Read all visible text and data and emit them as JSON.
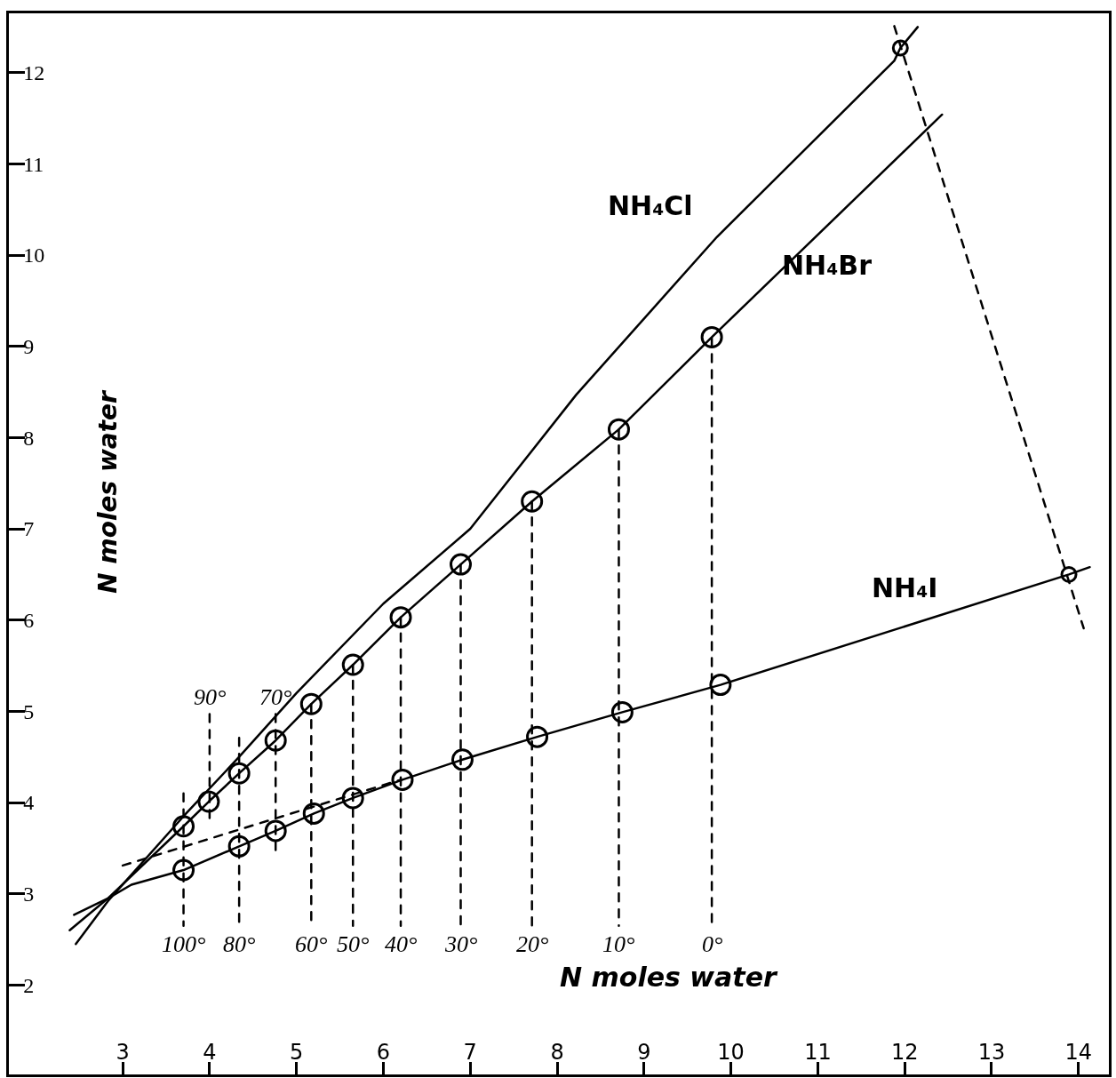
{
  "chart_data": {
    "type": "line",
    "xlabel": "N moles water",
    "ylabel": "N moles water",
    "xlim": [
      1.69,
      14.35
    ],
    "ylim": [
      1.02,
      12.65
    ],
    "xticks": [
      3,
      4,
      5,
      6,
      7,
      8,
      9,
      10,
      11,
      12,
      13,
      14
    ],
    "yticks": [
      2,
      3,
      4,
      5,
      6,
      7,
      8,
      9,
      10,
      11,
      12
    ],
    "series": [
      {
        "name": "NH₄Cl",
        "color": "#000000",
        "marker": "none",
        "line_style": "solid",
        "x": [
          2.46,
          2.83,
          3.7,
          4.34,
          5.0,
          6.0,
          7.0,
          8.22,
          9.84,
          11.88,
          11.95,
          12.15
        ],
        "values": [
          2.45,
          2.92,
          3.85,
          4.5,
          5.2,
          6.18,
          7.0,
          8.47,
          10.2,
          12.13,
          12.27,
          12.5
        ]
      },
      {
        "name": "NH₄Br",
        "color": "#000000",
        "marker": "none",
        "line_style": "solid",
        "x": [
          2.39,
          2.83,
          3.7,
          3.99,
          4.34,
          4.76,
          5.17,
          5.65,
          6.2,
          6.89,
          7.71,
          8.71,
          9.78,
          12.43
        ],
        "values": [
          2.6,
          2.95,
          3.74,
          4.01,
          4.32,
          4.68,
          5.08,
          5.51,
          6.03,
          6.61,
          7.3,
          8.09,
          9.1,
          11.54
        ]
      },
      {
        "name": "NH₄I",
        "color": "#000000",
        "marker": "none",
        "line_style": "solid",
        "x": [
          2.44,
          2.83,
          3.1,
          3.7,
          4.34,
          4.76,
          5.2,
          5.65,
          6.22,
          6.91,
          7.77,
          8.75,
          9.88,
          13.89,
          14.13
        ],
        "values": [
          2.77,
          2.95,
          3.1,
          3.26,
          3.52,
          3.69,
          3.88,
          4.05,
          4.25,
          4.47,
          4.72,
          4.99,
          5.29,
          6.5,
          6.58
        ]
      },
      {
        "type": "scatter",
        "color": "#000000",
        "marker": "circle",
        "x": [
          3.7,
          3.99,
          4.34,
          4.76,
          5.17,
          5.65,
          6.2,
          6.89,
          7.71,
          8.71,
          9.78
        ],
        "values": [
          3.74,
          4.01,
          4.32,
          4.68,
          5.08,
          5.51,
          6.03,
          6.61,
          7.3,
          8.09,
          9.1
        ]
      },
      {
        "type": "scatter",
        "color": "#000000",
        "marker": "circle",
        "x": [
          3.7,
          4.34,
          4.76,
          5.2,
          5.65,
          6.22,
          6.91,
          7.77,
          8.75,
          9.88
        ],
        "values": [
          3.26,
          3.52,
          3.69,
          3.88,
          4.05,
          4.25,
          4.47,
          4.72,
          4.99,
          5.29
        ]
      },
      {
        "type": "scatter",
        "color": "#000000",
        "marker": "circle",
        "x": [
          11.95,
          13.89
        ],
        "values": [
          12.27,
          6.5
        ]
      },
      {
        "color": "#000000",
        "marker": "none",
        "line_style": "dashed",
        "x": [
          3.0,
          6.2
        ],
        "values": [
          3.31,
          4.25
        ]
      },
      {
        "color": "#000000",
        "marker": "none",
        "line_style": "dashed",
        "x": [
          11.88,
          14.06
        ],
        "values": [
          12.51,
          5.91
        ]
      },
      {
        "color": "#000000",
        "marker": "none",
        "line_style": "dashed",
        "x": [
          3.7,
          3.7
        ],
        "values": [
          4.1,
          2.65
        ]
      },
      {
        "color": "#000000",
        "marker": "none",
        "line_style": "dashed",
        "x": [
          4.0,
          4.0
        ],
        "values": [
          4.97,
          3.8
        ]
      },
      {
        "color": "#000000",
        "marker": "none",
        "line_style": "dashed",
        "x": [
          4.34,
          4.34
        ],
        "values": [
          4.71,
          2.65
        ]
      },
      {
        "color": "#000000",
        "marker": "none",
        "line_style": "dashed",
        "x": [
          4.76,
          4.76
        ],
        "values": [
          4.97,
          3.43
        ]
      },
      {
        "color": "#000000",
        "marker": "none",
        "line_style": "dashed",
        "x": [
          5.17,
          5.17
        ],
        "values": [
          5.08,
          2.65
        ]
      },
      {
        "color": "#000000",
        "marker": "none",
        "line_style": "dashed",
        "x": [
          5.65,
          5.65
        ],
        "values": [
          5.51,
          2.65
        ]
      },
      {
        "color": "#000000",
        "marker": "none",
        "line_style": "dashed",
        "x": [
          6.2,
          6.2
        ],
        "values": [
          6.03,
          2.65
        ]
      },
      {
        "color": "#000000",
        "marker": "none",
        "line_style": "dashed",
        "x": [
          6.89,
          6.89
        ],
        "values": [
          6.61,
          2.65
        ]
      },
      {
        "color": "#000000",
        "marker": "none",
        "line_style": "dashed",
        "x": [
          7.71,
          7.71
        ],
        "values": [
          7.3,
          2.65
        ]
      },
      {
        "color": "#000000",
        "marker": "none",
        "line_style": "dashed",
        "x": [
          8.71,
          8.71
        ],
        "values": [
          8.09,
          2.65
        ]
      },
      {
        "color": "#000000",
        "marker": "none",
        "line_style": "dashed",
        "x": [
          9.78,
          9.78
        ],
        "values": [
          9.09,
          2.65
        ]
      }
    ],
    "annotations": [
      {
        "text": "100°",
        "x": 3.7,
        "y": 2.65
      },
      {
        "text": "90°",
        "x": 4.0,
        "y": 4.97
      },
      {
        "text": "80°",
        "x": 4.34,
        "y": 2.65
      },
      {
        "text": "70°",
        "x": 4.76,
        "y": 4.97
      },
      {
        "text": "60°",
        "x": 5.17,
        "y": 2.65
      },
      {
        "text": "50°",
        "x": 5.65,
        "y": 2.65
      },
      {
        "text": "40°",
        "x": 6.2,
        "y": 2.65
      },
      {
        "text": "30°",
        "x": 6.89,
        "y": 2.65
      },
      {
        "text": "20°",
        "x": 7.71,
        "y": 2.65
      },
      {
        "text": "10°",
        "x": 8.71,
        "y": 2.65
      },
      {
        "text": "0°",
        "x": 9.78,
        "y": 2.65
      }
    ]
  }
}
